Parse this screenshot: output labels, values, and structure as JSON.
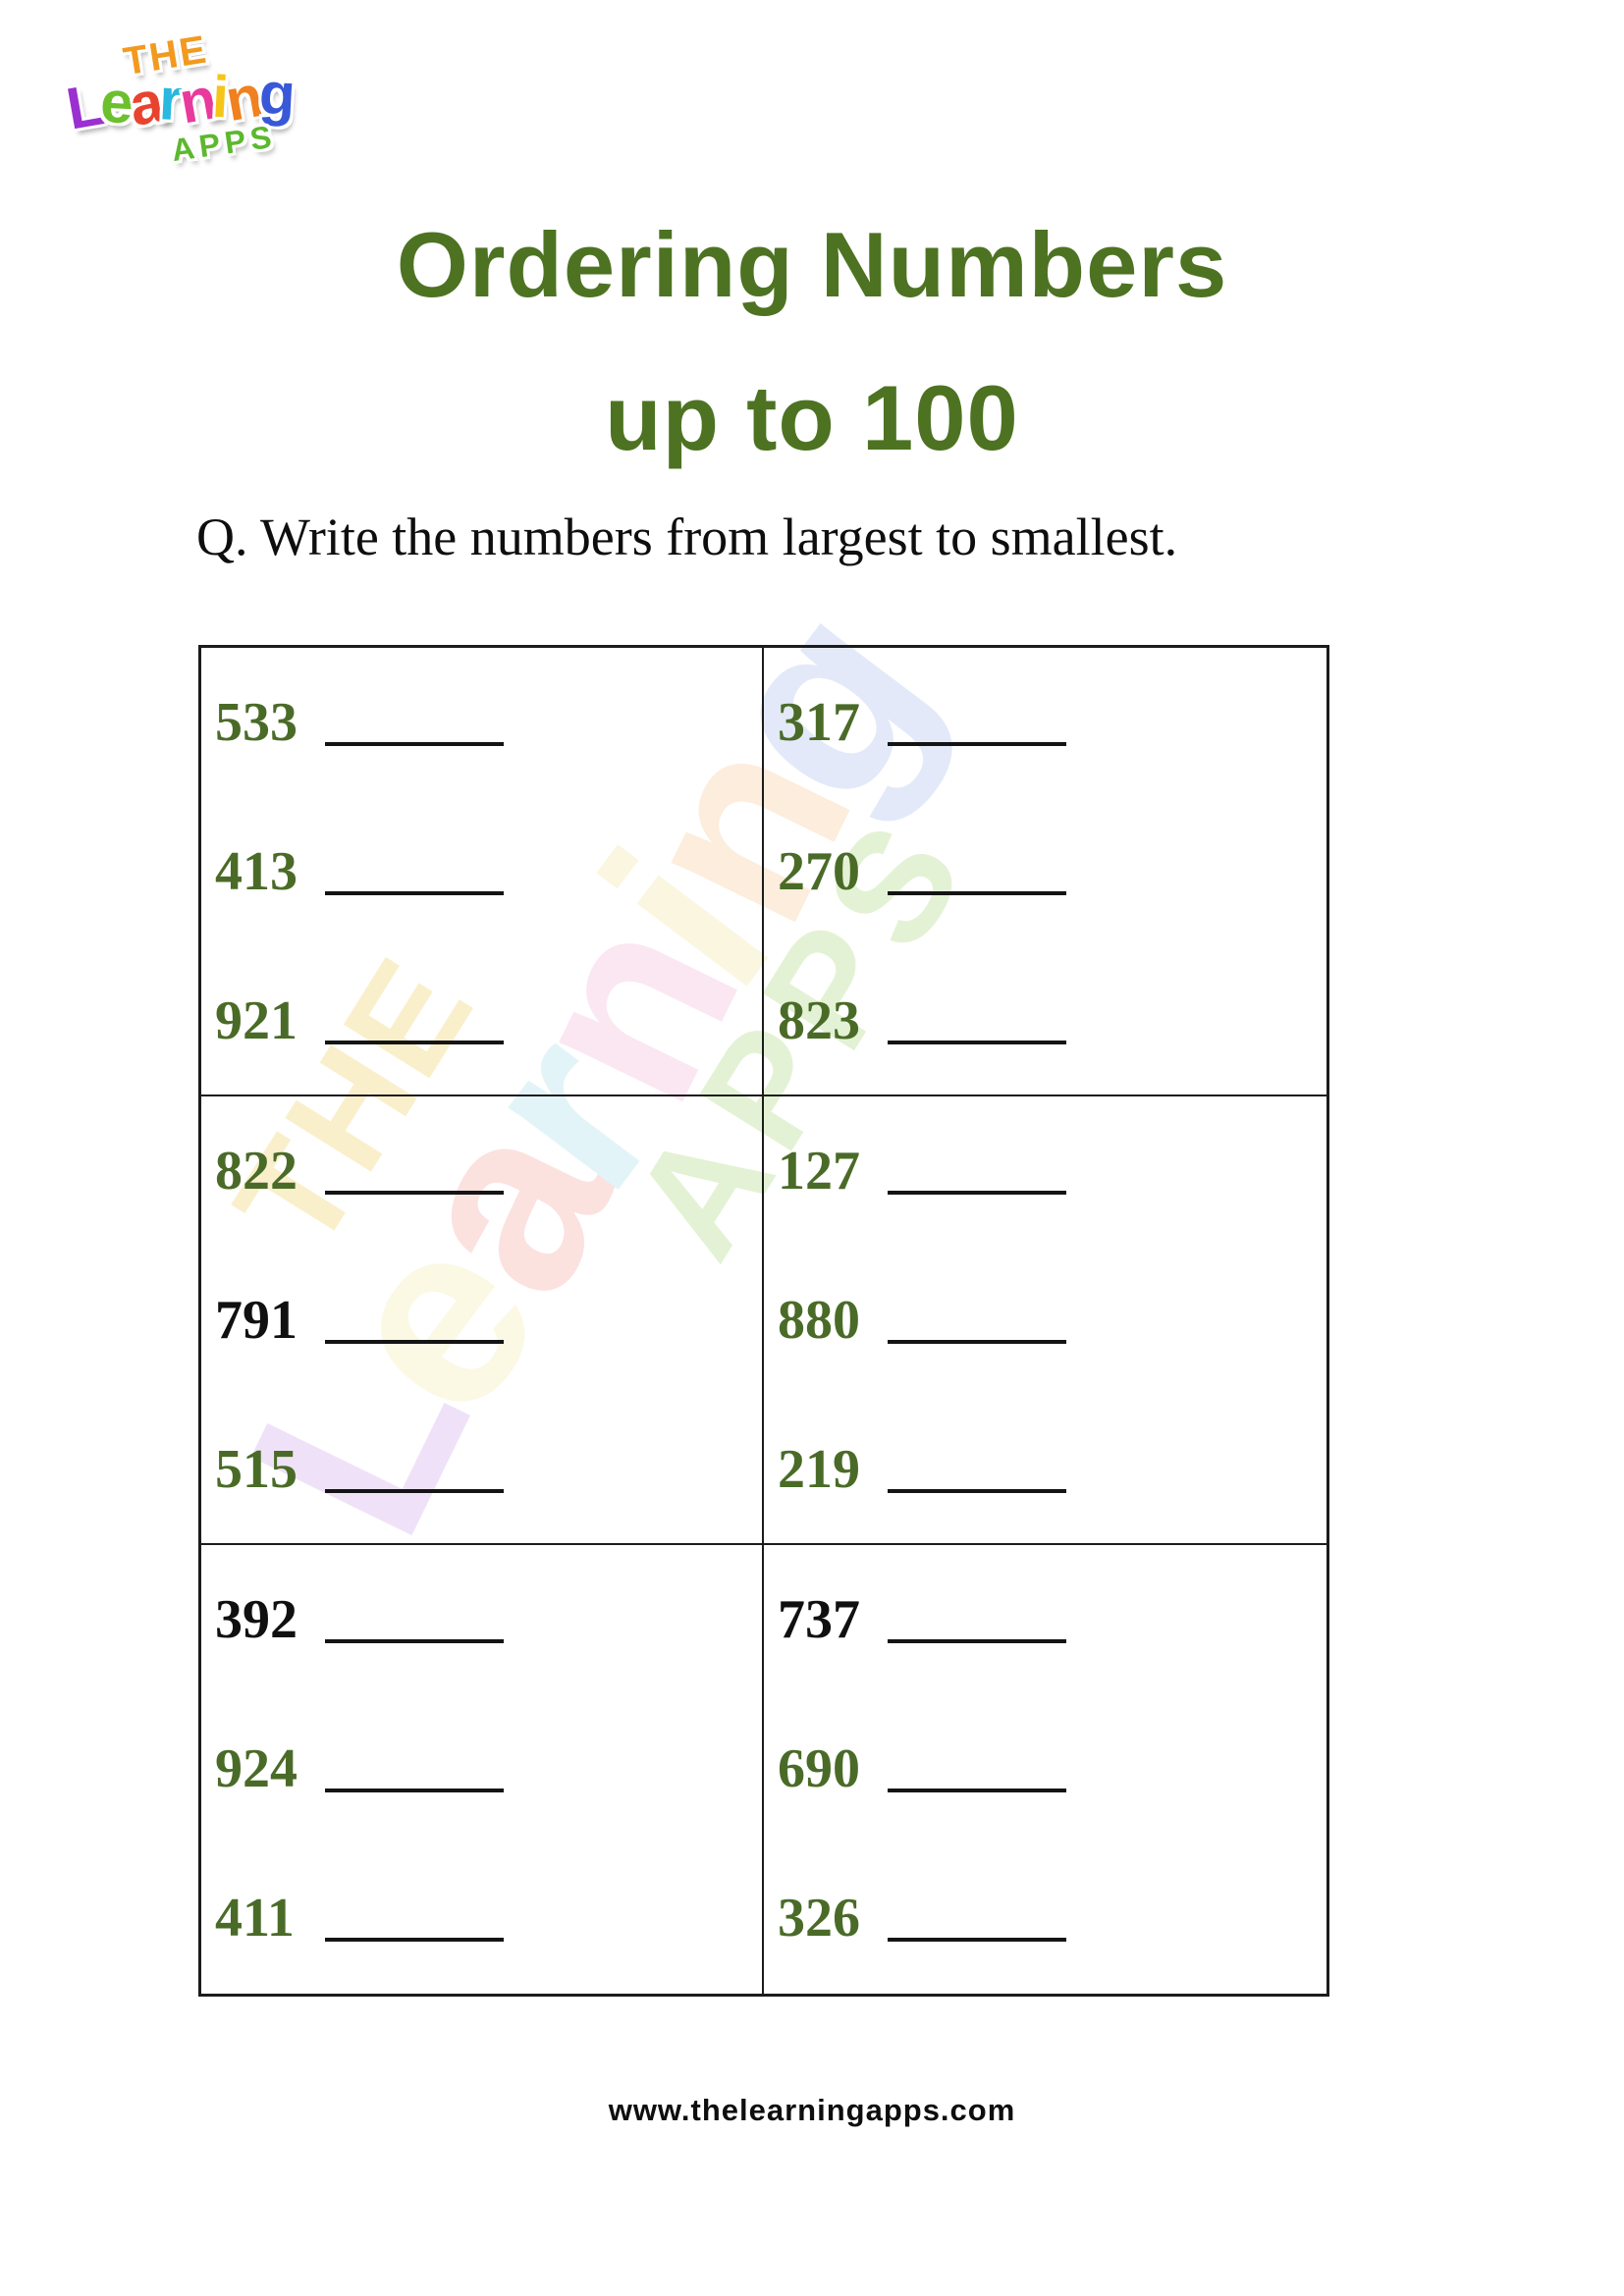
{
  "header": {
    "title_line1": "Ordering Numbers",
    "title_line2": "up to 100",
    "title_color": "#4d7322"
  },
  "question": {
    "text": "Q. Write the numbers from largest to smallest."
  },
  "table": {
    "columns": 2,
    "rows": 3,
    "number_colors": {
      "green": "#4a6b28",
      "black": "#101010"
    },
    "cells": [
      {
        "entries": [
          {
            "value": "533",
            "color": "green"
          },
          {
            "value": "413",
            "color": "green"
          },
          {
            "value": "921",
            "color": "green"
          }
        ]
      },
      {
        "entries": [
          {
            "value": "317",
            "color": "green"
          },
          {
            "value": "270",
            "color": "green"
          },
          {
            "value": "823",
            "color": "green"
          }
        ]
      },
      {
        "entries": [
          {
            "value": "822",
            "color": "green"
          },
          {
            "value": "791",
            "color": "black"
          },
          {
            "value": "515",
            "color": "green"
          }
        ]
      },
      {
        "entries": [
          {
            "value": "127",
            "color": "green"
          },
          {
            "value": "880",
            "color": "green"
          },
          {
            "value": "219",
            "color": "green"
          }
        ]
      },
      {
        "entries": [
          {
            "value": "392",
            "color": "black"
          },
          {
            "value": "924",
            "color": "green"
          },
          {
            "value": "411",
            "color": "green"
          }
        ]
      },
      {
        "entries": [
          {
            "value": "737",
            "color": "black"
          },
          {
            "value": "690",
            "color": "green"
          },
          {
            "value": "326",
            "color": "green"
          }
        ]
      }
    ]
  },
  "logo": {
    "word_the": {
      "text": "THE",
      "color": "#f29a1f"
    },
    "word_learning": {
      "letters": [
        {
          "ch": "L",
          "color": "#9b30d0"
        },
        {
          "ch": "e",
          "color": "#6cc02e"
        },
        {
          "ch": "a",
          "color": "#e8432e"
        },
        {
          "ch": "r",
          "color": "#28b8e0"
        },
        {
          "ch": "n",
          "color": "#e83a9c"
        },
        {
          "ch": "i",
          "color": "#f5c518"
        },
        {
          "ch": "n",
          "color": "#f08020"
        },
        {
          "ch": "g",
          "color": "#3858d8"
        }
      ]
    },
    "word_apps": {
      "text": "APPS",
      "color": "#5cb82e"
    }
  },
  "watermark": {
    "word_the": {
      "text": "THE",
      "color": "#f0d060"
    },
    "word_learning": {
      "letters": [
        {
          "ch": "L",
          "color": "#d0a8ec"
        },
        {
          "ch": "e",
          "color": "#f4ecae"
        },
        {
          "ch": "a",
          "color": "#f4a89e"
        },
        {
          "ch": "r",
          "color": "#aadfee"
        },
        {
          "ch": "n",
          "color": "#f2b8d8"
        },
        {
          "ch": "i",
          "color": "#f4e4a0"
        },
        {
          "ch": "n",
          "color": "#f6c896"
        },
        {
          "ch": "g",
          "color": "#aabcec"
        }
      ]
    },
    "word_apps": {
      "text": "APPS",
      "color": "#abd87c"
    }
  },
  "footer": {
    "url": "www.thelearningapps.com"
  }
}
